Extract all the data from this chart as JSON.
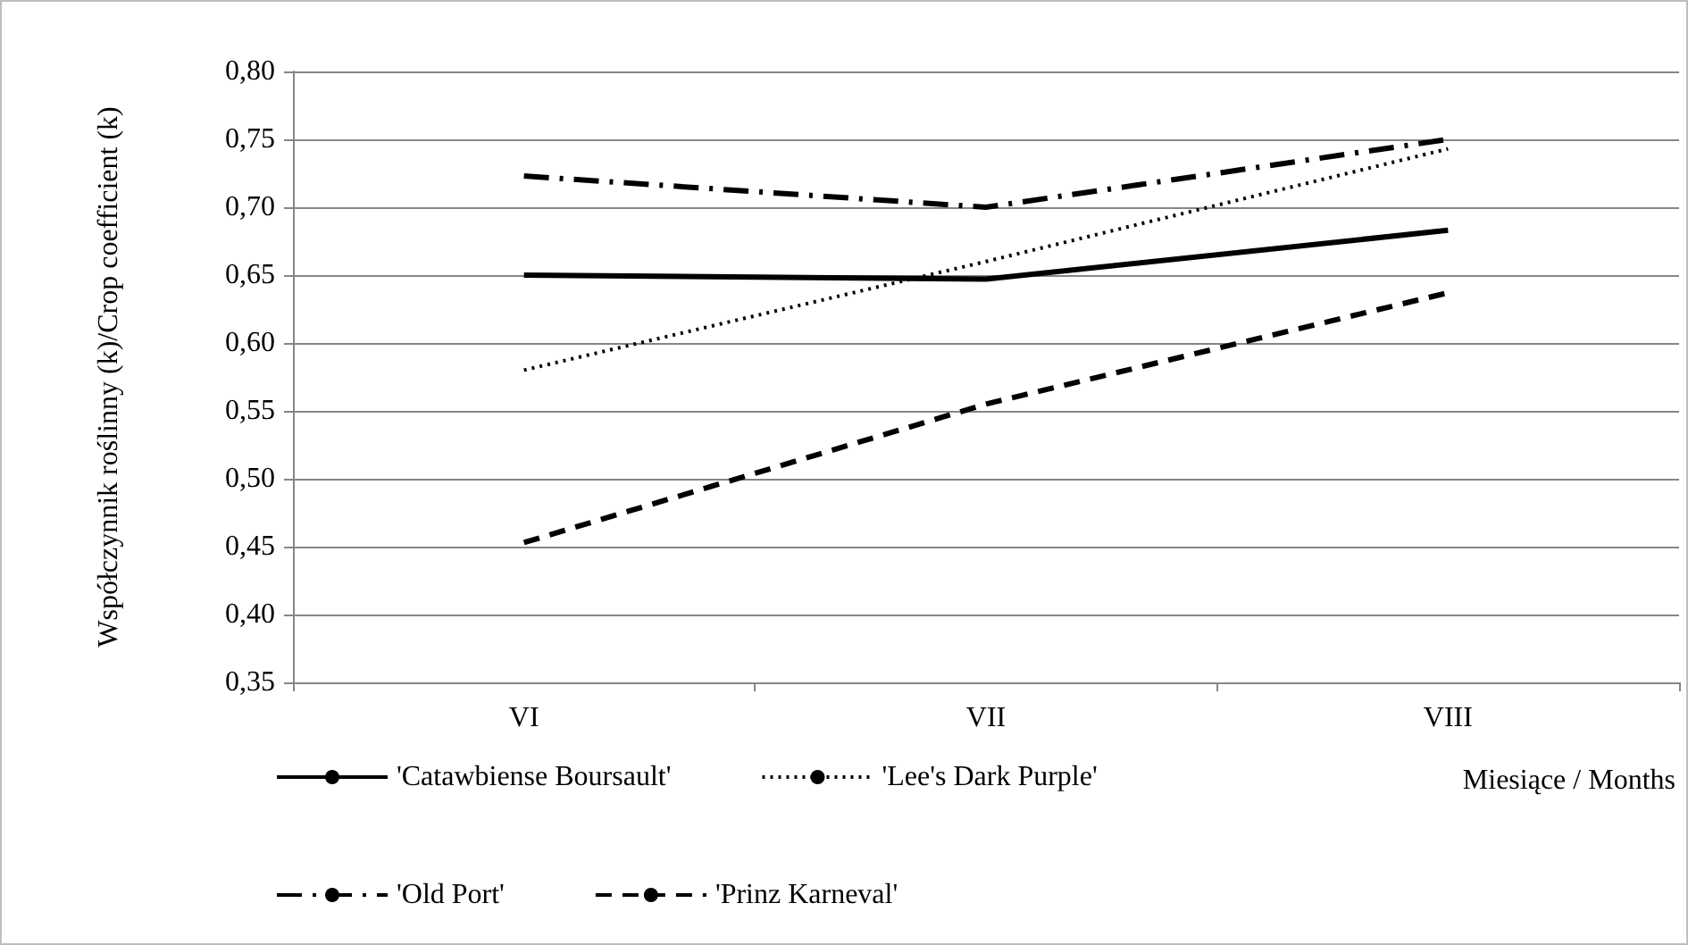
{
  "chart_data": {
    "type": "line",
    "xlabel": "Miesiące / Months",
    "ylabel": "Współczynnik roślinny (k)/Crop coefficient (k)",
    "categories": [
      "VI",
      "VII",
      "VIII"
    ],
    "series": [
      {
        "name": "'Catawbiense Boursault'",
        "color": "#000000",
        "line_style": "solid",
        "values": [
          0.65,
          0.647,
          0.683
        ]
      },
      {
        "name": "'Lee's Dark Purple'",
        "color": "#000000",
        "line_style": "dotted",
        "values": [
          0.58,
          0.66,
          0.743
        ]
      },
      {
        "name": "'Old Port'",
        "color": "#000000",
        "line_style": "dashdot",
        "values": [
          0.723,
          0.7,
          0.75
        ]
      },
      {
        "name": "'Prinz Karneval'",
        "color": "#000000",
        "line_style": "dashed",
        "values": [
          0.453,
          0.555,
          0.637
        ]
      }
    ],
    "ylim": [
      0.35,
      0.8
    ],
    "yticks": [
      {
        "value": 0.35,
        "label": "0,35"
      },
      {
        "value": 0.4,
        "label": "0,40"
      },
      {
        "value": 0.45,
        "label": "0,45"
      },
      {
        "value": 0.5,
        "label": "0,50"
      },
      {
        "value": 0.55,
        "label": "0,55"
      },
      {
        "value": 0.6,
        "label": "0,60"
      },
      {
        "value": 0.65,
        "label": "0,65"
      },
      {
        "value": 0.7,
        "label": "0,70"
      },
      {
        "value": 0.75,
        "label": "0,75"
      },
      {
        "value": 0.8,
        "label": "0,80"
      }
    ],
    "grid": "y",
    "legend": "bottom",
    "marker": "none"
  }
}
